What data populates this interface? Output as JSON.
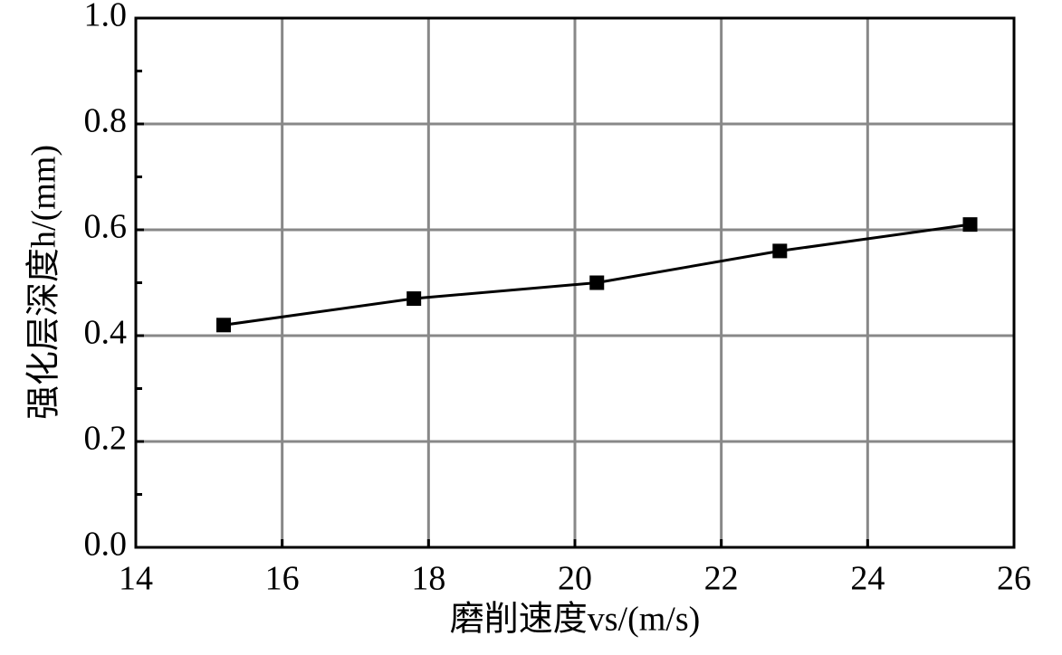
{
  "chart_data": {
    "type": "line",
    "x_label": "磨削速度vs/(m/s)",
    "y_label": "强化层深度h/(mm)",
    "x": [
      15.2,
      17.8,
      20.3,
      22.8,
      25.4
    ],
    "series": [
      {
        "color": "#000000",
        "values": [
          0.42,
          0.47,
          0.5,
          0.56,
          0.61
        ]
      }
    ],
    "xlim": [
      14,
      26
    ],
    "xticks": [
      14,
      16,
      18,
      20,
      22,
      24,
      26
    ],
    "ylim": [
      0,
      1.0
    ],
    "yticks": [
      {
        "value": 0,
        "label": "0.0"
      },
      {
        "value": 0.2,
        "label": "0.2"
      },
      {
        "value": 0.4,
        "label": "0.4"
      },
      {
        "value": 0.6,
        "label": "0.6"
      },
      {
        "value": 0.8,
        "label": "0.8"
      },
      {
        "value": 1.0,
        "label": "1.0"
      }
    ],
    "y_minor_ticks": [
      0.1,
      0.3,
      0.5,
      0.7,
      0.9
    ],
    "grid": true
  }
}
